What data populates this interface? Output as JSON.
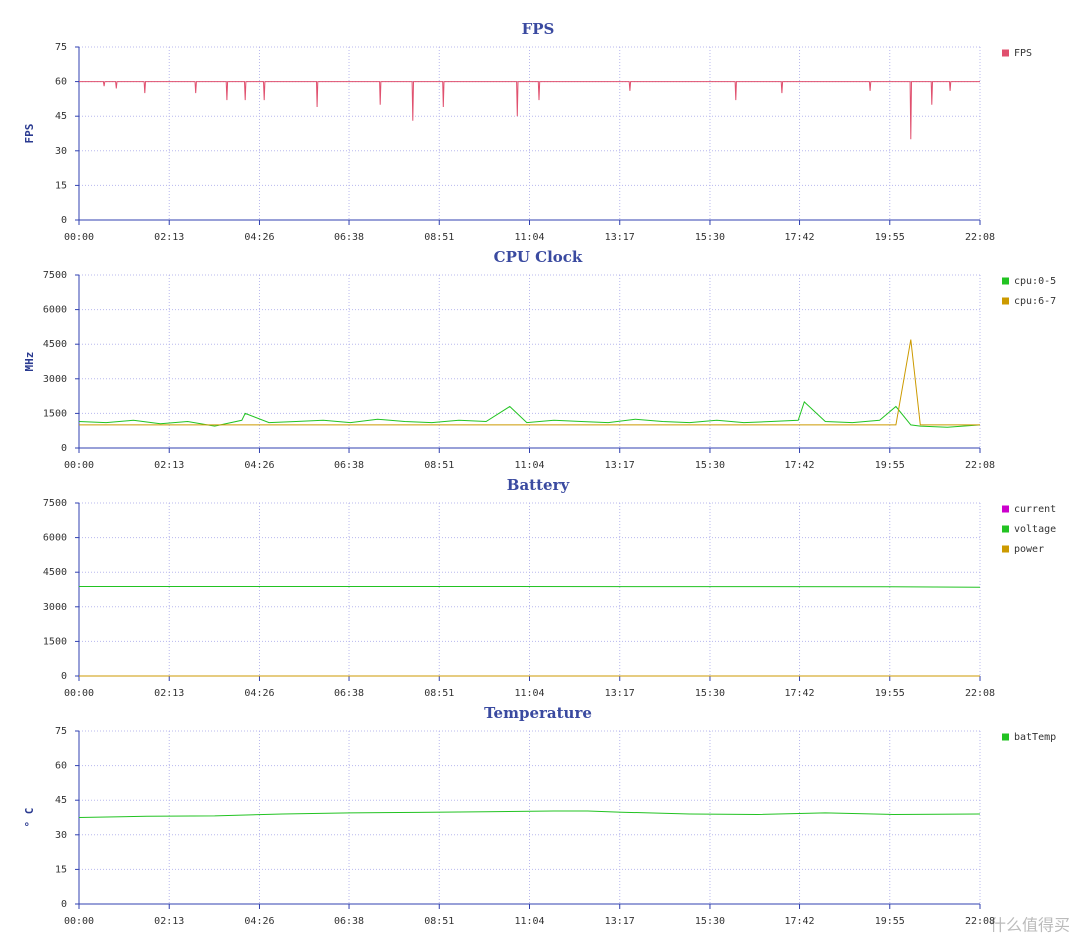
{
  "chart_data": [
    {
      "type": "line",
      "title": "FPS",
      "y_label": "FPS",
      "x": [
        0,
        36,
        37,
        38,
        54,
        55,
        56,
        96,
        97,
        98,
        171,
        172,
        173,
        217,
        218,
        219,
        244,
        245,
        246,
        272,
        273,
        274,
        350,
        351,
        352,
        443,
        444,
        445,
        491,
        492,
        493,
        536,
        537,
        538,
        645,
        646,
        647,
        677,
        678,
        679,
        811,
        812,
        813,
        967,
        968,
        969,
        1035,
        1036,
        1037,
        1165,
        1166,
        1167,
        1225,
        1226,
        1227,
        1256,
        1257,
        1258,
        1283,
        1284,
        1285,
        1328
      ],
      "series": [
        {
          "name": "FPS",
          "color": "#e0506e",
          "values": [
            60,
            60,
            58,
            60,
            60,
            57,
            60,
            60,
            55,
            60,
            60,
            55,
            60,
            60,
            52,
            60,
            60,
            52,
            60,
            60,
            52,
            60,
            60,
            49,
            60,
            60,
            50,
            60,
            60,
            43,
            60,
            60,
            49,
            60,
            60,
            45,
            60,
            60,
            52,
            60,
            60,
            56,
            60,
            60,
            52,
            60,
            60,
            55,
            60,
            60,
            56,
            60,
            60,
            35,
            60,
            60,
            50,
            60,
            60,
            56,
            60,
            60
          ]
        }
      ],
      "xlim": [
        0,
        1328
      ],
      "xticks": [
        {
          "value": 0,
          "label": "00:00"
        },
        {
          "value": 133,
          "label": "02:13"
        },
        {
          "value": 266,
          "label": "04:26"
        },
        {
          "value": 398,
          "label": "06:38"
        },
        {
          "value": 531,
          "label": "08:51"
        },
        {
          "value": 664,
          "label": "11:04"
        },
        {
          "value": 797,
          "label": "13:17"
        },
        {
          "value": 930,
          "label": "15:30"
        },
        {
          "value": 1062,
          "label": "17:42"
        },
        {
          "value": 1195,
          "label": "19:55"
        },
        {
          "value": 1328,
          "label": "22:08"
        }
      ],
      "ylim": [
        0,
        75
      ],
      "yticks": [
        0,
        15,
        30,
        45,
        60,
        75
      ],
      "grid": true
    },
    {
      "type": "line",
      "title": "CPU Clock",
      "y_label": "MHz",
      "x": [
        0,
        40,
        80,
        120,
        160,
        200,
        240,
        245,
        280,
        320,
        360,
        400,
        440,
        480,
        520,
        560,
        600,
        635,
        660,
        700,
        740,
        780,
        820,
        860,
        900,
        940,
        980,
        1020,
        1060,
        1069,
        1100,
        1140,
        1180,
        1204,
        1226,
        1240,
        1280,
        1328
      ],
      "series": [
        {
          "name": "cpu:0-5",
          "color": "#22c322",
          "values": [
            1150,
            1100,
            1200,
            1050,
            1150,
            950,
            1200,
            1500,
            1100,
            1150,
            1200,
            1100,
            1250,
            1150,
            1100,
            1200,
            1150,
            1800,
            1100,
            1200,
            1150,
            1100,
            1250,
            1150,
            1100,
            1200,
            1100,
            1150,
            1200,
            2000,
            1150,
            1100,
            1200,
            1800,
            1000,
            950,
            900,
            1000
          ]
        },
        {
          "name": "cpu:6-7",
          "color": "#cc9a00",
          "values": [
            1000,
            1000,
            1000,
            1000,
            1000,
            1000,
            1000,
            1000,
            1000,
            1000,
            1000,
            1000,
            1000,
            1000,
            1000,
            1000,
            1000,
            1000,
            1000,
            1000,
            1000,
            1000,
            1000,
            1000,
            1000,
            1000,
            1000,
            1000,
            1000,
            1000,
            1000,
            1000,
            1000,
            1000,
            4700,
            1000,
            1000,
            1000
          ]
        }
      ],
      "xlim": [
        0,
        1328
      ],
      "xticks": [
        {
          "value": 0,
          "label": "00:00"
        },
        {
          "value": 133,
          "label": "02:13"
        },
        {
          "value": 266,
          "label": "04:26"
        },
        {
          "value": 398,
          "label": "06:38"
        },
        {
          "value": 531,
          "label": "08:51"
        },
        {
          "value": 664,
          "label": "11:04"
        },
        {
          "value": 797,
          "label": "13:17"
        },
        {
          "value": 930,
          "label": "15:30"
        },
        {
          "value": 1062,
          "label": "17:42"
        },
        {
          "value": 1195,
          "label": "19:55"
        },
        {
          "value": 1328,
          "label": "22:08"
        }
      ],
      "ylim": [
        0,
        7500
      ],
      "yticks": [
        0,
        1500,
        3000,
        4500,
        6000,
        7500
      ],
      "grid": true
    },
    {
      "type": "line",
      "title": "Battery",
      "x": [
        0,
        600,
        1195,
        1328
      ],
      "series": [
        {
          "name": "current",
          "color": "#cc00cc",
          "values": [
            0,
            0,
            0,
            0
          ]
        },
        {
          "name": "voltage",
          "color": "#22c322",
          "values": [
            3880,
            3880,
            3870,
            3850
          ]
        },
        {
          "name": "power",
          "color": "#cc9a00",
          "values": [
            0,
            0,
            0,
            0
          ]
        }
      ],
      "xlim": [
        0,
        1328
      ],
      "xticks": [
        {
          "value": 0,
          "label": "00:00"
        },
        {
          "value": 133,
          "label": "02:13"
        },
        {
          "value": 266,
          "label": "04:26"
        },
        {
          "value": 398,
          "label": "06:38"
        },
        {
          "value": 531,
          "label": "08:51"
        },
        {
          "value": 664,
          "label": "11:04"
        },
        {
          "value": 797,
          "label": "13:17"
        },
        {
          "value": 930,
          "label": "15:30"
        },
        {
          "value": 1062,
          "label": "17:42"
        },
        {
          "value": 1195,
          "label": "19:55"
        },
        {
          "value": 1328,
          "label": "22:08"
        }
      ],
      "ylim": [
        0,
        7500
      ],
      "yticks": [
        0,
        1500,
        3000,
        4500,
        6000,
        7500
      ],
      "grid": true
    },
    {
      "type": "line",
      "title": "Temperature",
      "y_label": "° C",
      "x": [
        0,
        100,
        200,
        300,
        400,
        500,
        600,
        700,
        750,
        800,
        900,
        1000,
        1100,
        1200,
        1328
      ],
      "series": [
        {
          "name": "batTemp",
          "color": "#22c322",
          "values": [
            37.5,
            38,
            38.2,
            39,
            39.5,
            39.7,
            40,
            40.3,
            40.3,
            39.8,
            39,
            38.8,
            39.5,
            38.8,
            39
          ]
        }
      ],
      "xlim": [
        0,
        1328
      ],
      "xticks": [
        {
          "value": 0,
          "label": "00:00"
        },
        {
          "value": 133,
          "label": "02:13"
        },
        {
          "value": 266,
          "label": "04:26"
        },
        {
          "value": 398,
          "label": "06:38"
        },
        {
          "value": 531,
          "label": "08:51"
        },
        {
          "value": 664,
          "label": "11:04"
        },
        {
          "value": 797,
          "label": "13:17"
        },
        {
          "value": 930,
          "label": "15:30"
        },
        {
          "value": 1062,
          "label": "17:42"
        },
        {
          "value": 1195,
          "label": "19:55"
        },
        {
          "value": 1328,
          "label": "22:08"
        }
      ],
      "ylim": [
        0,
        75
      ],
      "yticks": [
        0,
        15,
        30,
        45,
        60,
        75
      ],
      "grid": true
    }
  ],
  "watermark": "什么值得买"
}
